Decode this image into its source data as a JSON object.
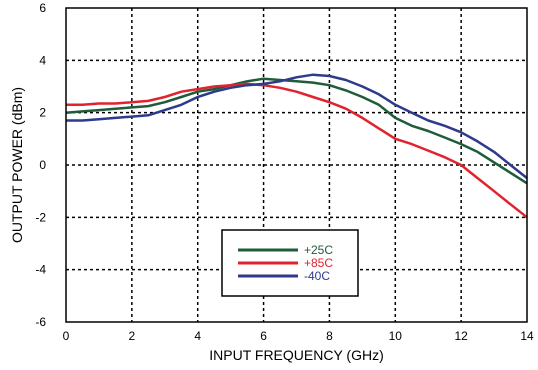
{
  "chart_data": {
    "type": "line",
    "xlabel": "INPUT FREQUENCY (GHz)",
    "ylabel": "OUTPUT POWER (dBm)",
    "xlim": [
      0,
      14
    ],
    "ylim": [
      -6,
      6
    ],
    "xticks": [
      0,
      2,
      4,
      6,
      8,
      10,
      12,
      14
    ],
    "yticks": [
      -6,
      -4,
      -2,
      0,
      2,
      4,
      6
    ],
    "grid": "dashed",
    "legend_position": "bottom-center",
    "series": [
      {
        "name": "+25C",
        "color": "#1f5c3a",
        "x": [
          0,
          0.5,
          1,
          1.5,
          2,
          2.5,
          3,
          3.5,
          4,
          4.5,
          5,
          5.5,
          6,
          6.5,
          7,
          7.5,
          8,
          8.5,
          9,
          9.5,
          10,
          10.5,
          11,
          11.5,
          12,
          12.5,
          13,
          13.5,
          14
        ],
        "y": [
          2.0,
          2.05,
          2.1,
          2.15,
          2.2,
          2.25,
          2.4,
          2.6,
          2.8,
          2.9,
          3.05,
          3.2,
          3.3,
          3.25,
          3.2,
          3.15,
          3.05,
          2.85,
          2.6,
          2.3,
          1.8,
          1.5,
          1.3,
          1.05,
          0.8,
          0.5,
          0.1,
          -0.3,
          -0.7
        ]
      },
      {
        "name": "+85C",
        "color": "#e0232e",
        "x": [
          0,
          0.5,
          1,
          1.5,
          2,
          2.5,
          3,
          3.5,
          4,
          4.5,
          5,
          5.5,
          6,
          6.5,
          7,
          7.5,
          8,
          8.5,
          9,
          9.5,
          10,
          10.5,
          11,
          11.5,
          12,
          12.5,
          13,
          13.5,
          14
        ],
        "y": [
          2.3,
          2.3,
          2.35,
          2.35,
          2.4,
          2.45,
          2.6,
          2.8,
          2.9,
          3.0,
          3.05,
          3.1,
          3.05,
          2.95,
          2.8,
          2.6,
          2.4,
          2.15,
          1.8,
          1.4,
          1.0,
          0.8,
          0.55,
          0.3,
          0.0,
          -0.5,
          -1.0,
          -1.5,
          -2.0
        ]
      },
      {
        "name": "-40C",
        "color": "#2e3a8c",
        "x": [
          0,
          0.5,
          1,
          1.5,
          2,
          2.5,
          3,
          3.5,
          4,
          4.5,
          5,
          5.5,
          6,
          6.5,
          7,
          7.5,
          8,
          8.5,
          9,
          9.5,
          10,
          10.5,
          11,
          11.5,
          12,
          12.5,
          13,
          13.5,
          14
        ],
        "y": [
          1.7,
          1.7,
          1.75,
          1.8,
          1.85,
          1.9,
          2.1,
          2.3,
          2.6,
          2.8,
          2.95,
          3.05,
          3.1,
          3.2,
          3.35,
          3.45,
          3.4,
          3.25,
          3.0,
          2.7,
          2.3,
          2.0,
          1.7,
          1.5,
          1.25,
          0.9,
          0.5,
          0.0,
          -0.5
        ]
      }
    ]
  }
}
